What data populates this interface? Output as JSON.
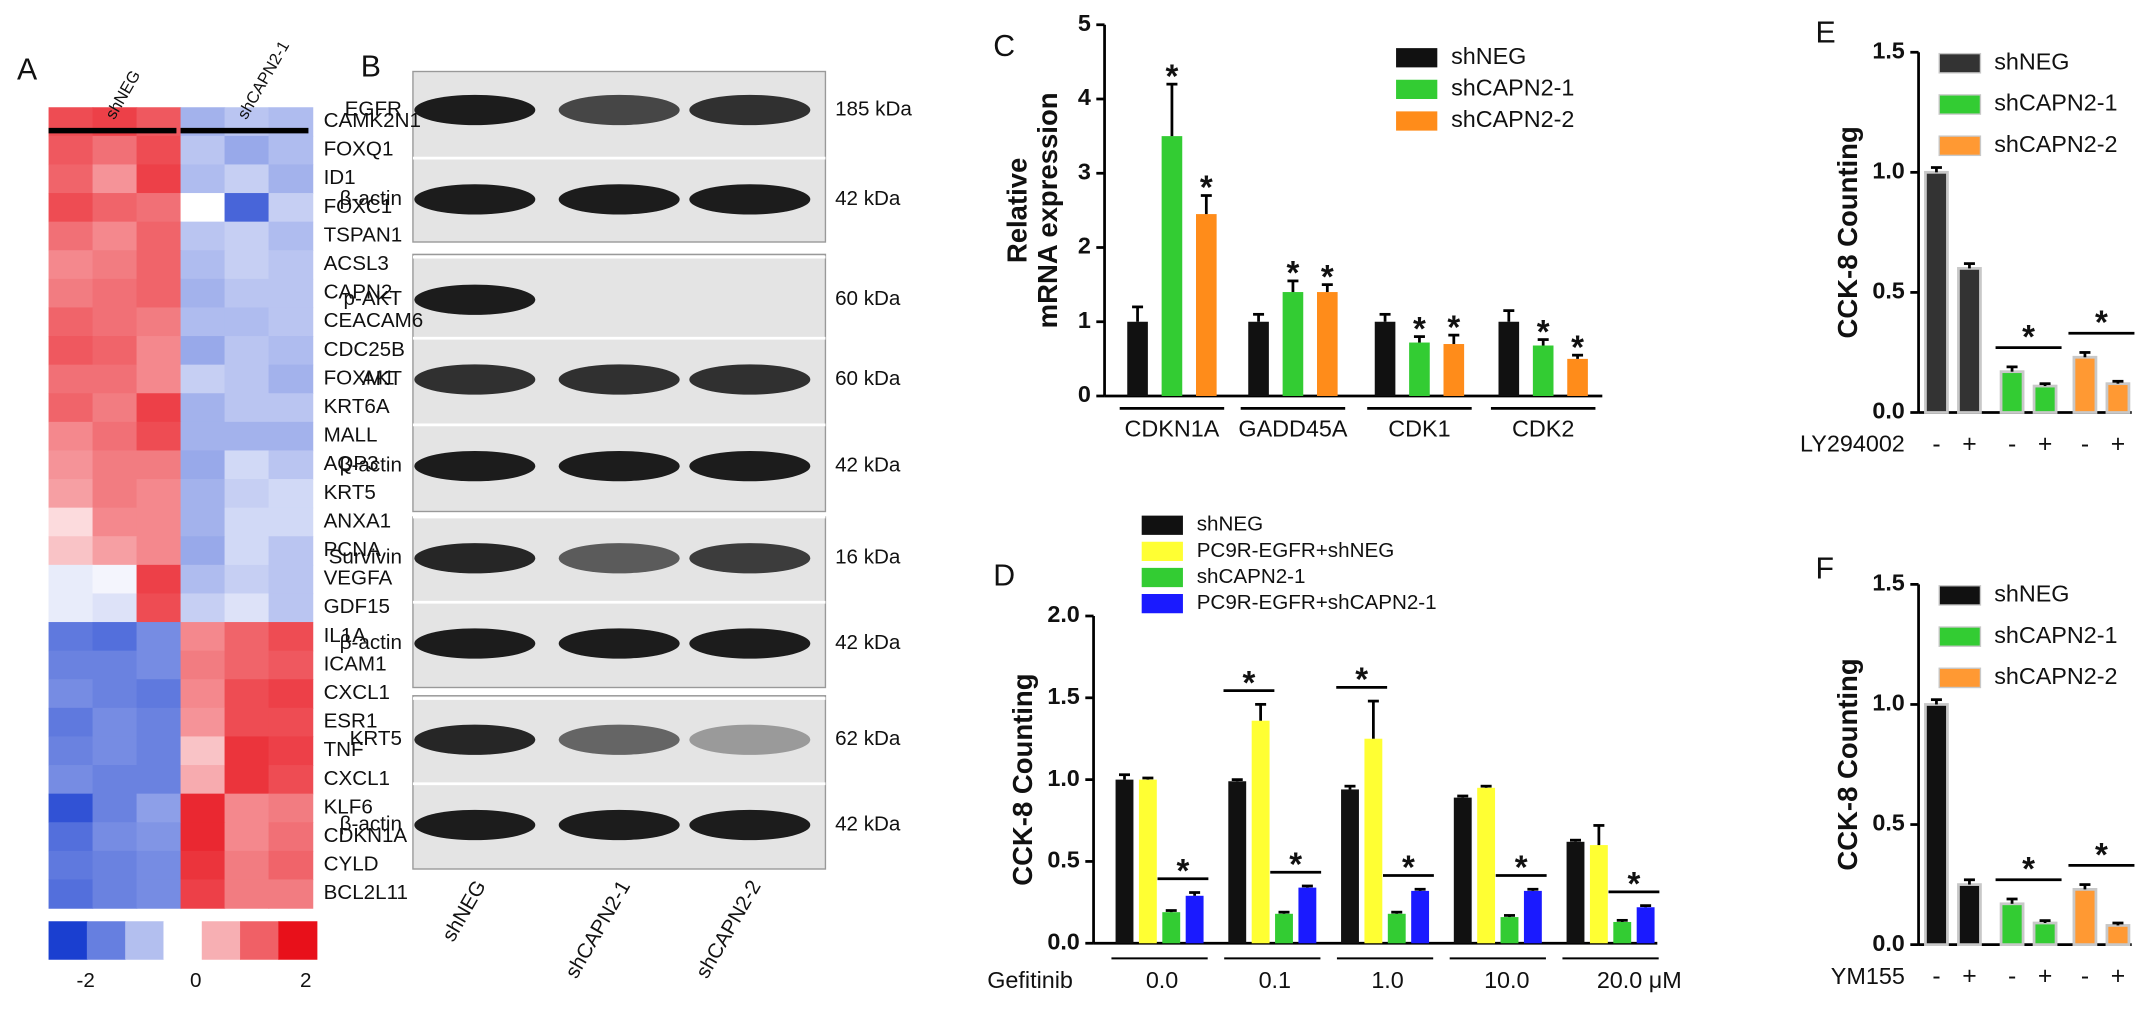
{
  "chart_data": [
    {
      "type": "heatmap",
      "panel": "A",
      "groups": [
        "shNEG",
        "shCAPN2-1"
      ],
      "rows": [
        "CAMK2N1",
        "FOXQ1",
        "ID1",
        "FOXC1",
        "TSPAN1",
        "ACSL3",
        "CAPN2",
        "CEACAM6",
        "CDC25B",
        "FOXM1",
        "KRT6A",
        "MALL",
        "AQP3",
        "KRT5",
        "ANXA1",
        "PCNA",
        "VEGFA",
        "GDF15",
        "IL1A",
        "ICAM1",
        "CXCL1",
        "ESR1",
        "TNF",
        "CXCL1",
        "KLF6",
        "CDKN1A",
        "CYLD",
        "BCL2L11"
      ],
      "values": [
        [
          1.5,
          1.6,
          1.4,
          -0.8,
          -0.6,
          -0.7
        ],
        [
          1.4,
          1.2,
          1.5,
          -0.6,
          -0.9,
          -0.7
        ],
        [
          1.3,
          0.9,
          1.6,
          -0.7,
          -0.5,
          -0.8
        ],
        [
          1.5,
          1.3,
          1.2,
          0,
          -1.6,
          -0.5
        ],
        [
          1.2,
          1.0,
          1.3,
          -0.6,
          -0.5,
          -0.7
        ],
        [
          1.0,
          1.1,
          1.3,
          -0.7,
          -0.5,
          -0.6
        ],
        [
          1.1,
          1.2,
          1.3,
          -0.8,
          -0.6,
          -0.6
        ],
        [
          1.3,
          1.2,
          1.1,
          -0.7,
          -0.7,
          -0.6
        ],
        [
          1.4,
          1.3,
          1.0,
          -0.9,
          -0.6,
          -0.7
        ],
        [
          1.2,
          1.2,
          1.0,
          -0.5,
          -0.6,
          -0.8
        ],
        [
          1.3,
          1.1,
          1.6,
          -0.8,
          -0.6,
          -0.6
        ],
        [
          1.0,
          1.2,
          1.5,
          -0.8,
          -0.8,
          -0.8
        ],
        [
          0.9,
          1.1,
          1.1,
          -0.9,
          -0.4,
          -0.6
        ],
        [
          0.8,
          1.1,
          1.0,
          -0.8,
          -0.5,
          -0.4
        ],
        [
          0.3,
          1.0,
          1.0,
          -0.8,
          -0.4,
          -0.4
        ],
        [
          0.5,
          0.8,
          1.0,
          -0.9,
          -0.4,
          -0.6
        ],
        [
          -0.2,
          -0.1,
          1.6,
          -0.7,
          -0.5,
          -0.6
        ],
        [
          -0.2,
          -0.3,
          1.5,
          -0.5,
          -0.3,
          -0.6
        ],
        [
          -1.4,
          -1.5,
          -1.2,
          1.0,
          1.3,
          1.5
        ],
        [
          -1.3,
          -1.3,
          -1.2,
          1.1,
          1.3,
          1.4
        ],
        [
          -1.2,
          -1.3,
          -1.4,
          1.0,
          1.5,
          1.6
        ],
        [
          -1.4,
          -1.2,
          -1.3,
          0.9,
          1.5,
          1.5
        ],
        [
          -1.3,
          -1.2,
          -1.3,
          0.5,
          1.7,
          1.6
        ],
        [
          -1.2,
          -1.3,
          -1.3,
          0.7,
          1.7,
          1.5
        ],
        [
          -1.8,
          -1.3,
          -1.0,
          1.8,
          1.0,
          1.1
        ],
        [
          -1.5,
          -1.2,
          -1.1,
          1.8,
          1.0,
          1.2
        ],
        [
          -1.4,
          -1.3,
          -1.2,
          1.7,
          1.1,
          1.3
        ],
        [
          -1.5,
          -1.3,
          -1.2,
          1.6,
          1.1,
          1.1
        ]
      ],
      "zlim": [
        -2,
        2
      ],
      "zticks": [
        -2,
        0,
        2
      ]
    },
    {
      "type": "bar",
      "panel": "C",
      "ylabel": [
        "Relative",
        "mRNA expression"
      ],
      "categories": [
        "CDKN1A",
        "GADD45A",
        "CDK1",
        "CDK2"
      ],
      "series": [
        {
          "name": "shNEG",
          "color": "#111111",
          "values": [
            1.0,
            1.0,
            1.0,
            1.0
          ],
          "errors": [
            0.2,
            0.1,
            0.1,
            0.15
          ]
        },
        {
          "name": "shCAPN2-1",
          "color": "#33cc33",
          "values": [
            3.5,
            1.4,
            0.72,
            0.68
          ],
          "errors": [
            0.7,
            0.15,
            0.08,
            0.08
          ]
        },
        {
          "name": "shCAPN2-2",
          "color": "#ff8c1a",
          "values": [
            2.45,
            1.4,
            0.7,
            0.5
          ],
          "errors": [
            0.25,
            0.1,
            0.12,
            0.05
          ]
        }
      ],
      "ylim": [
        0,
        5
      ],
      "yticks": [
        0,
        1,
        2,
        3,
        4,
        5
      ],
      "annotations": [
        "*",
        "*",
        "*",
        "*",
        "*",
        "*",
        "*",
        "*"
      ]
    },
    {
      "type": "bar",
      "panel": "D",
      "ylabel": "CCK-8 Counting",
      "xlabel": "Gefitinib",
      "categories": [
        "0.0",
        "0.1",
        "1.0",
        "10.0",
        "20.0 μM"
      ],
      "series": [
        {
          "name": "shNEG",
          "color": "#111111",
          "values": [
            1.0,
            0.99,
            0.94,
            0.89,
            0.62
          ],
          "errors": [
            0.03,
            0.01,
            0.02,
            0.01,
            0.01
          ]
        },
        {
          "name": "PC9R-EGFR+shNEG",
          "color": "#ffff33",
          "values": [
            1.0,
            1.36,
            1.25,
            0.95,
            0.6
          ],
          "errors": [
            0.01,
            0.1,
            0.23,
            0.01,
            0.12
          ]
        },
        {
          "name": "shCAPN2-1",
          "color": "#33cc33",
          "values": [
            0.19,
            0.18,
            0.18,
            0.16,
            0.13
          ],
          "errors": [
            0.01,
            0.01,
            0.01,
            0.01,
            0.01
          ]
        },
        {
          "name": "PC9R-EGFR+shCAPN2-1",
          "color": "#1a1aff",
          "values": [
            0.29,
            0.34,
            0.32,
            0.32,
            0.22
          ],
          "errors": [
            0.02,
            0.01,
            0.01,
            0.01,
            0.01
          ]
        }
      ],
      "ylim": [
        0,
        2
      ],
      "yticks": [
        {
          "value": 0,
          "label": "0.0"
        },
        {
          "value": 0.5,
          "label": "0.5"
        },
        {
          "value": 1,
          "label": "1.0"
        },
        {
          "value": 1.5,
          "label": "1.5"
        },
        {
          "value": 2,
          "label": "2.0"
        }
      ],
      "annotations": [
        "*",
        "*",
        "*",
        "*",
        "*",
        "*",
        "*"
      ]
    },
    {
      "type": "groupbar",
      "panel": "E",
      "ylabel": "CCK-8 Counting",
      "xlabel": "LY294002",
      "categories": [
        "-",
        "+"
      ],
      "series": [
        {
          "name": "shNEG",
          "color": "#333333",
          "values": [
            1.0,
            0.6
          ],
          "errors": [
            0.02,
            0.02
          ]
        },
        {
          "name": "shCAPN2-1",
          "color": "#33cc33",
          "values": [
            0.17,
            0.11
          ],
          "errors": [
            0.02,
            0.01
          ]
        },
        {
          "name": "shCAPN2-2",
          "color": "#ff9933",
          "values": [
            0.23,
            0.12
          ],
          "errors": [
            0.02,
            0.01
          ]
        }
      ],
      "ylim": [
        0,
        1.5
      ],
      "yticks": [
        {
          "value": 0,
          "label": "0.0"
        },
        {
          "value": 0.5,
          "label": "0.5"
        },
        {
          "value": 1,
          "label": "1.0"
        },
        {
          "value": 1.5,
          "label": "1.5"
        }
      ],
      "annotations": [
        "*",
        "*"
      ]
    },
    {
      "type": "groupbar",
      "panel": "F",
      "ylabel": "CCK-8 Counting",
      "xlabel": "YM155",
      "categories": [
        "-",
        "+"
      ],
      "series": [
        {
          "name": "shNEG",
          "color": "#111111",
          "values": [
            1.0,
            0.25
          ],
          "errors": [
            0.02,
            0.02
          ]
        },
        {
          "name": "shCAPN2-1",
          "color": "#33cc33",
          "values": [
            0.17,
            0.09
          ],
          "errors": [
            0.02,
            0.01
          ]
        },
        {
          "name": "shCAPN2-2",
          "color": "#ff9933",
          "values": [
            0.23,
            0.08
          ],
          "errors": [
            0.02,
            0.01
          ]
        }
      ],
      "ylim": [
        0,
        1.5
      ],
      "yticks": [
        {
          "value": 0,
          "label": "0.0"
        },
        {
          "value": 0.5,
          "label": "0.5"
        },
        {
          "value": 1,
          "label": "1.0"
        },
        {
          "value": 1.5,
          "label": "1.5"
        }
      ],
      "annotations": [
        "*",
        "*"
      ]
    }
  ],
  "western_blot": {
    "panel": "B",
    "lanes": [
      "shNEG",
      "shCAPN2-1",
      "shCAPN2-2"
    ],
    "rows": [
      {
        "label": "EGFR",
        "size": "185 kDa"
      },
      {
        "label": "β-actin",
        "size": "42 kDa"
      },
      {
        "label": "p-AKT",
        "size": "60 kDa"
      },
      {
        "label": "AKT",
        "size": "60 kDa"
      },
      {
        "label": "β-actin",
        "size": "42 kDa"
      },
      {
        "label": "Survivin",
        "size": "16 kDa"
      },
      {
        "label": "β-actin",
        "size": "42 kDa"
      },
      {
        "label": "KRT5",
        "size": "62 kDa"
      },
      {
        "label": "β-actin",
        "size": "42 kDa"
      }
    ]
  }
}
